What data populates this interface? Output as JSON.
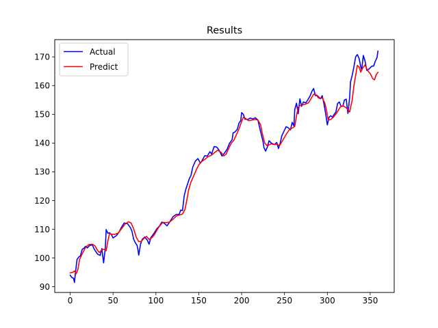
{
  "chart_data": {
    "type": "line",
    "title": "Results",
    "xlabel": "",
    "ylabel": "",
    "xlim": [
      -18,
      378
    ],
    "ylim": [
      88,
      176
    ],
    "xticks": [
      0,
      50,
      100,
      150,
      200,
      250,
      300,
      350
    ],
    "yticks": [
      90,
      100,
      110,
      120,
      130,
      140,
      150,
      160,
      170
    ],
    "grid": false,
    "legend_position": "top-left",
    "series": [
      {
        "name": "Actual",
        "color": "#0000ff",
        "points": [
          [
            0,
            94.0
          ],
          [
            2,
            93.2
          ],
          [
            4,
            92.9
          ],
          [
            5,
            91.5
          ],
          [
            6,
            94.5
          ],
          [
            8,
            99.5
          ],
          [
            10,
            100.3
          ],
          [
            12,
            100.8
          ],
          [
            14,
            103.0
          ],
          [
            16,
            103.4
          ],
          [
            18,
            104.1
          ],
          [
            20,
            103.5
          ],
          [
            23,
            104.4
          ],
          [
            26,
            104.5
          ],
          [
            28,
            103.1
          ],
          [
            30,
            102.2
          ],
          [
            32,
            101.3
          ],
          [
            35,
            100.9
          ],
          [
            37,
            103.3
          ],
          [
            38,
            100.6
          ],
          [
            39,
            98.3
          ],
          [
            41,
            103.5
          ],
          [
            42,
            109.9
          ],
          [
            44,
            108.6
          ],
          [
            46,
            108.8
          ],
          [
            48,
            108.2
          ],
          [
            50,
            107.0
          ],
          [
            54,
            107.8
          ],
          [
            57,
            109.0
          ],
          [
            60,
            110.8
          ],
          [
            63,
            112.2
          ],
          [
            67,
            111.9
          ],
          [
            70,
            110.7
          ],
          [
            72,
            109.4
          ],
          [
            74,
            106.6
          ],
          [
            76,
            105.3
          ],
          [
            78,
            104.4
          ],
          [
            79,
            103.0
          ],
          [
            80,
            101.0
          ],
          [
            82,
            104.7
          ],
          [
            84,
            106.5
          ],
          [
            87,
            107.3
          ],
          [
            90,
            106.2
          ],
          [
            92,
            104.8
          ],
          [
            94,
            107.0
          ],
          [
            98,
            108.7
          ],
          [
            101,
            110.1
          ],
          [
            104,
            111.1
          ],
          [
            107,
            112.5
          ],
          [
            110,
            112.0
          ],
          [
            113,
            111.2
          ],
          [
            116,
            112.5
          ],
          [
            120,
            114.4
          ],
          [
            124,
            115.2
          ],
          [
            127,
            115.1
          ],
          [
            129,
            116.7
          ],
          [
            131,
            116.5
          ],
          [
            133,
            121.6
          ],
          [
            135,
            124.0
          ],
          [
            137,
            125.8
          ],
          [
            139,
            127.6
          ],
          [
            141,
            128.8
          ],
          [
            143,
            131.6
          ],
          [
            146,
            133.7
          ],
          [
            149,
            134.6
          ],
          [
            152,
            133.0
          ],
          [
            154,
            134.0
          ],
          [
            157,
            135.6
          ],
          [
            160,
            135.5
          ],
          [
            163,
            137.0
          ],
          [
            165,
            136.2
          ],
          [
            168,
            138.8
          ],
          [
            171,
            138.6
          ],
          [
            174,
            137.4
          ],
          [
            177,
            135.5
          ],
          [
            180,
            136.5
          ],
          [
            183,
            137.8
          ],
          [
            186,
            140.0
          ],
          [
            189,
            141.2
          ],
          [
            190,
            143.5
          ],
          [
            192,
            143.8
          ],
          [
            195,
            144.8
          ],
          [
            197,
            147.0
          ],
          [
            199,
            147.8
          ],
          [
            200,
            150.6
          ],
          [
            202,
            150.0
          ],
          [
            204,
            148.3
          ],
          [
            207,
            148.2
          ],
          [
            210,
            148.7
          ],
          [
            213,
            148.4
          ],
          [
            216,
            148.8
          ],
          [
            219,
            148.0
          ],
          [
            222,
            144.1
          ],
          [
            225,
            140.5
          ],
          [
            226,
            138.5
          ],
          [
            228,
            137.2
          ],
          [
            230,
            138.6
          ],
          [
            232,
            140.8
          ],
          [
            235,
            139.9
          ],
          [
            238,
            139.5
          ],
          [
            241,
            140.2
          ],
          [
            243,
            138.1
          ],
          [
            245,
            140.0
          ],
          [
            247,
            142.6
          ],
          [
            250,
            144.5
          ],
          [
            252,
            145.7
          ],
          [
            254,
            145.4
          ],
          [
            257,
            144.6
          ],
          [
            259,
            147.2
          ],
          [
            261,
            146.0
          ],
          [
            262,
            151.6
          ],
          [
            264,
            153.9
          ],
          [
            266,
            150.2
          ],
          [
            268,
            155.4
          ],
          [
            270,
            152.8
          ],
          [
            272,
            154.3
          ],
          [
            275,
            154.0
          ],
          [
            278,
            155.4
          ],
          [
            280,
            156.5
          ],
          [
            282,
            158.0
          ],
          [
            284,
            159.0
          ],
          [
            286,
            156.5
          ],
          [
            288,
            156.6
          ],
          [
            290,
            156.0
          ],
          [
            292,
            155.4
          ],
          [
            294,
            156.5
          ],
          [
            296,
            153.8
          ],
          [
            298,
            150.3
          ],
          [
            300,
            146.3
          ],
          [
            302,
            149.0
          ],
          [
            304,
            149.5
          ],
          [
            306,
            149.0
          ],
          [
            308,
            150.0
          ],
          [
            310,
            150.8
          ],
          [
            312,
            153.8
          ],
          [
            314,
            154.3
          ],
          [
            316,
            152.8
          ],
          [
            318,
            152.8
          ],
          [
            320,
            155.0
          ],
          [
            322,
            155.3
          ],
          [
            324,
            150.3
          ],
          [
            326,
            155.7
          ],
          [
            327,
            161.2
          ],
          [
            329,
            163.6
          ],
          [
            331,
            166.5
          ],
          [
            333,
            170.0
          ],
          [
            335,
            170.8
          ],
          [
            337,
            169.5
          ],
          [
            339,
            166.5
          ],
          [
            340,
            165.3
          ],
          [
            342,
            170.5
          ],
          [
            344,
            168.5
          ],
          [
            346,
            165.3
          ],
          [
            348,
            165.6
          ],
          [
            350,
            166.2
          ],
          [
            352,
            166.8
          ],
          [
            354,
            166.8
          ],
          [
            356,
            168.5
          ],
          [
            358,
            169.8
          ],
          [
            359,
            172.0
          ]
        ]
      },
      {
        "name": "Predict",
        "color": "#ff0000",
        "points": [
          [
            0,
            94.8
          ],
          [
            3,
            95.0
          ],
          [
            5,
            95.5
          ],
          [
            7,
            94.5
          ],
          [
            9,
            96.0
          ],
          [
            11,
            99.5
          ],
          [
            13,
            100.8
          ],
          [
            15,
            102.0
          ],
          [
            18,
            103.7
          ],
          [
            22,
            104.7
          ],
          [
            26,
            104.8
          ],
          [
            29,
            104.2
          ],
          [
            32,
            102.6
          ],
          [
            34,
            101.9
          ],
          [
            36,
            102.5
          ],
          [
            38,
            103.0
          ],
          [
            40,
            103.0
          ],
          [
            42,
            102.5
          ],
          [
            44,
            106.0
          ],
          [
            46,
            108.5
          ],
          [
            48,
            108.3
          ],
          [
            52,
            108.2
          ],
          [
            56,
            108.7
          ],
          [
            60,
            110.2
          ],
          [
            64,
            111.8
          ],
          [
            68,
            112.6
          ],
          [
            71,
            112.2
          ],
          [
            74,
            110.2
          ],
          [
            77,
            107.3
          ],
          [
            80,
            105.7
          ],
          [
            83,
            105.8
          ],
          [
            86,
            106.8
          ],
          [
            89,
            107.5
          ],
          [
            92,
            106.5
          ],
          [
            95,
            107.0
          ],
          [
            98,
            108.0
          ],
          [
            101,
            109.6
          ],
          [
            104,
            111.0
          ],
          [
            108,
            112.4
          ],
          [
            112,
            112.3
          ],
          [
            116,
            112.5
          ],
          [
            120,
            113.5
          ],
          [
            124,
            114.6
          ],
          [
            128,
            115.0
          ],
          [
            131,
            115.3
          ],
          [
            134,
            117.0
          ],
          [
            136,
            120.0
          ],
          [
            138,
            123.5
          ],
          [
            141,
            126.5
          ],
          [
            144,
            128.5
          ],
          [
            147,
            130.6
          ],
          [
            150,
            132.4
          ],
          [
            153,
            133.5
          ],
          [
            157,
            134.3
          ],
          [
            161,
            135.3
          ],
          [
            165,
            135.8
          ],
          [
            168,
            136.6
          ],
          [
            172,
            137.5
          ],
          [
            176,
            136.8
          ],
          [
            179,
            135.5
          ],
          [
            182,
            136.2
          ],
          [
            185,
            138.2
          ],
          [
            188,
            140.0
          ],
          [
            191,
            141.0
          ],
          [
            194,
            143.0
          ],
          [
            197,
            145.0
          ],
          [
            200,
            147.5
          ],
          [
            202,
            149.0
          ],
          [
            205,
            148.5
          ],
          [
            208,
            147.8
          ],
          [
            212,
            148.0
          ],
          [
            216,
            148.2
          ],
          [
            219,
            148.0
          ],
          [
            222,
            146.5
          ],
          [
            224,
            143.5
          ],
          [
            227,
            140.0
          ],
          [
            230,
            139.0
          ],
          [
            234,
            139.7
          ],
          [
            238,
            139.5
          ],
          [
            242,
            139.5
          ],
          [
            244,
            139.0
          ],
          [
            247,
            140.5
          ],
          [
            250,
            142.0
          ],
          [
            253,
            143.5
          ],
          [
            256,
            144.8
          ],
          [
            259,
            145.2
          ],
          [
            262,
            145.8
          ],
          [
            264,
            149.5
          ],
          [
            266,
            152.5
          ],
          [
            268,
            153.0
          ],
          [
            270,
            153.2
          ],
          [
            274,
            153.5
          ],
          [
            278,
            154.0
          ],
          [
            281,
            155.5
          ],
          [
            284,
            157.0
          ],
          [
            287,
            156.8
          ],
          [
            290,
            155.6
          ],
          [
            294,
            155.7
          ],
          [
            297,
            154.0
          ],
          [
            299,
            151.5
          ],
          [
            301,
            148.0
          ],
          [
            304,
            148.2
          ],
          [
            307,
            149.0
          ],
          [
            311,
            150.5
          ],
          [
            315,
            152.5
          ],
          [
            318,
            153.0
          ],
          [
            322,
            152.3
          ],
          [
            326,
            150.8
          ],
          [
            329,
            155.0
          ],
          [
            331,
            160.0
          ],
          [
            333,
            163.5
          ],
          [
            335,
            167.0
          ],
          [
            337,
            166.5
          ],
          [
            339,
            164.7
          ],
          [
            341,
            166.0
          ],
          [
            344,
            167.2
          ],
          [
            347,
            165.2
          ],
          [
            350,
            164.2
          ],
          [
            353,
            162.4
          ],
          [
            355,
            162.0
          ],
          [
            357,
            163.8
          ],
          [
            359,
            164.6
          ]
        ]
      }
    ]
  }
}
